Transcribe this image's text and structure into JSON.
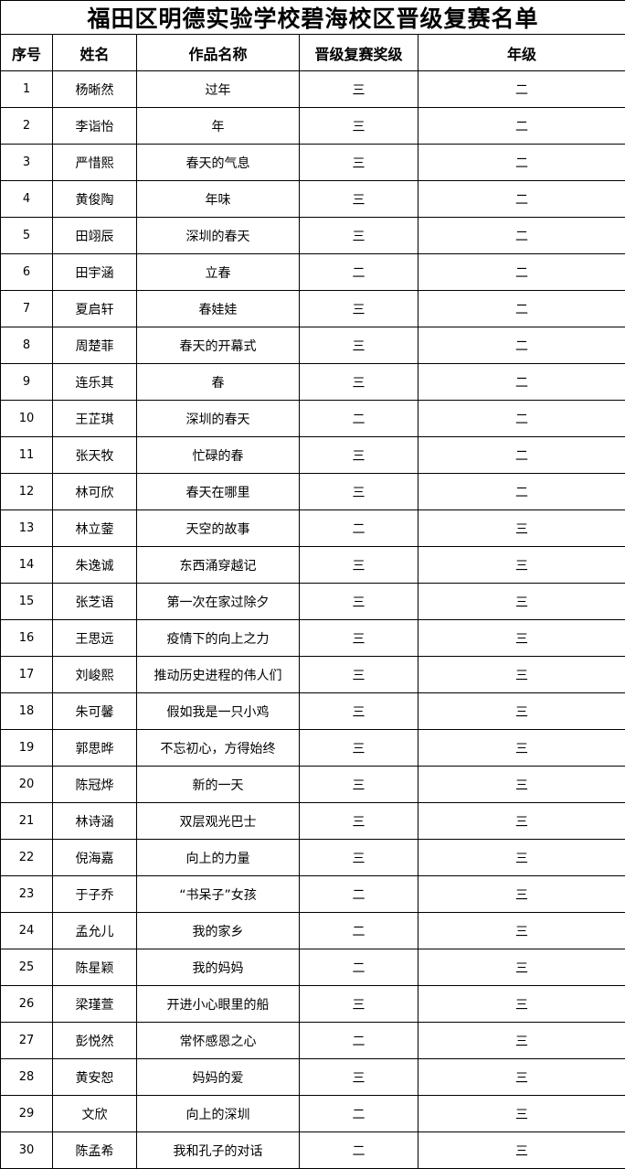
{
  "title": "福田区明德实验学校碧海校区晋级复赛名单",
  "columns": [
    "序号",
    "姓名",
    "作品名称",
    "晋级复赛奖级",
    "年级"
  ],
  "rows": [
    [
      "1",
      "杨晰然",
      "过年",
      "三",
      "二"
    ],
    [
      "2",
      "李诣怡",
      "年",
      "三",
      "二"
    ],
    [
      "3",
      "严惜熙",
      "春天的气息",
      "三",
      "二"
    ],
    [
      "4",
      "黄俊陶",
      "年味",
      "三",
      "二"
    ],
    [
      "5",
      "田翊辰",
      "深圳的春天",
      "三",
      "二"
    ],
    [
      "6",
      "田宇涵",
      "立春",
      "二",
      "二"
    ],
    [
      "7",
      "夏启轩",
      "春娃娃",
      "三",
      "二"
    ],
    [
      "8",
      "周楚菲",
      "春天的开幕式",
      "三",
      "二"
    ],
    [
      "9",
      "连乐其",
      "春",
      "三",
      "二"
    ],
    [
      "10",
      "王芷琪",
      "深圳的春天",
      "二",
      "二"
    ],
    [
      "11",
      "张天牧",
      "忙碌的春",
      "三",
      "二"
    ],
    [
      "12",
      "林可欣",
      "春天在哪里",
      "三",
      "二"
    ],
    [
      "13",
      "林立蓥",
      "天空的故事",
      "二",
      "三"
    ],
    [
      "14",
      "朱逸诚",
      "东西涌穿越记",
      "三",
      "三"
    ],
    [
      "15",
      "张芝语",
      "第一次在家过除夕",
      "三",
      "三"
    ],
    [
      "16",
      "王思远",
      "疫情下的向上之力",
      "三",
      "三"
    ],
    [
      "17",
      "刘峻熙",
      "推动历史进程的伟人们",
      "三",
      "三"
    ],
    [
      "18",
      "朱可馨",
      "假如我是一只小鸡",
      "三",
      "三"
    ],
    [
      "19",
      "郭思晔",
      "不忘初心，方得始终",
      "三",
      "三"
    ],
    [
      "20",
      "陈冠烨",
      "新的一天",
      "三",
      "三"
    ],
    [
      "21",
      "林诗涵",
      "双层观光巴士",
      "三",
      "三"
    ],
    [
      "22",
      "倪海嘉",
      "向上的力量",
      "三",
      "三"
    ],
    [
      "23",
      "于子乔",
      "“书呆子”女孩",
      "二",
      "三"
    ],
    [
      "24",
      "孟允儿",
      "我的家乡",
      "二",
      "三"
    ],
    [
      "25",
      "陈星颖",
      "我的妈妈",
      "二",
      "三"
    ],
    [
      "26",
      "梁瑾萱",
      "开进小心眼里的船",
      "三",
      "三"
    ],
    [
      "27",
      "彭悦然",
      "常怀感恩之心",
      "二",
      "三"
    ],
    [
      "28",
      "黄安恕",
      "妈妈的爱",
      "三",
      "三"
    ],
    [
      "29",
      "文欣",
      "向上的深圳",
      "二",
      "三"
    ],
    [
      "30",
      "陈孟希",
      "我和孔子的对话",
      "二",
      "三"
    ]
  ]
}
